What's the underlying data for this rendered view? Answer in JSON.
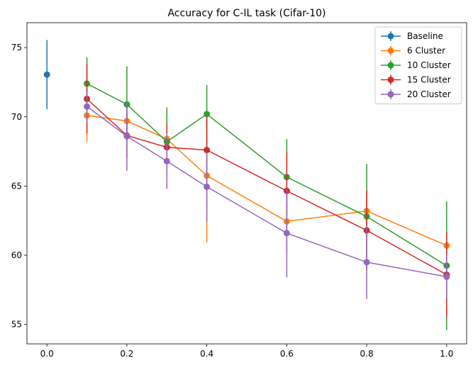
{
  "chart_data": {
    "type": "line",
    "title": "Accuracy for C-IL task (Cifar-10)",
    "xlabel": "",
    "ylabel": "",
    "xlim": [
      -0.05,
      1.05
    ],
    "ylim": [
      53.6,
      76.8
    ],
    "xticks": [
      0.0,
      0.2,
      0.4,
      0.6,
      0.8,
      1.0
    ],
    "xtick_labels": [
      "0.0",
      "0.2",
      "0.4",
      "0.6",
      "0.8",
      "1.0"
    ],
    "yticks": [
      55,
      60,
      65,
      70,
      75
    ],
    "ytick_labels": [
      "55",
      "60",
      "65",
      "70",
      "75"
    ],
    "grid": false,
    "legend_position": "top-right",
    "error_bars": true,
    "series": [
      {
        "name": "Baseline",
        "color": "#1f77b4",
        "x": [
          0.0
        ],
        "y": [
          73.05
        ],
        "yerr": [
          2.5
        ]
      },
      {
        "name": "6 Cluster",
        "color": "#ff7f0e",
        "x": [
          0.1,
          0.2,
          0.3,
          0.4,
          0.6,
          0.8,
          1.0
        ],
        "y": [
          70.1,
          69.7,
          68.4,
          65.75,
          62.45,
          63.2,
          60.7
        ],
        "yerr": [
          1.9,
          1.0,
          2.3,
          4.8,
          2.3,
          1.3,
          0.9
        ]
      },
      {
        "name": "10 Cluster",
        "color": "#2ca02c",
        "x": [
          0.1,
          0.2,
          0.3,
          0.4,
          0.6,
          0.8,
          1.0
        ],
        "y": [
          72.4,
          70.9,
          68.2,
          70.2,
          65.65,
          62.8,
          59.25
        ],
        "yerr": [
          1.9,
          2.75,
          2.4,
          2.1,
          2.75,
          3.8,
          4.65
        ]
      },
      {
        "name": "15 Cluster",
        "color": "#d62728",
        "x": [
          0.1,
          0.2,
          0.3,
          0.4,
          0.6,
          0.8,
          1.0
        ],
        "y": [
          71.3,
          68.65,
          67.8,
          67.6,
          64.65,
          61.8,
          58.6
        ],
        "yerr": [
          2.5,
          1.6,
          1.7,
          2.4,
          2.85,
          2.9,
          3.1
        ]
      },
      {
        "name": "20 Cluster",
        "color": "#9467bd",
        "x": [
          0.1,
          0.2,
          0.3,
          0.4,
          0.6,
          0.8,
          1.0
        ],
        "y": [
          70.75,
          68.6,
          66.8,
          64.95,
          61.6,
          59.5,
          58.45
        ],
        "yerr": [
          1.1,
          2.5,
          2.0,
          2.5,
          3.2,
          2.65,
          1.6
        ]
      }
    ]
  }
}
